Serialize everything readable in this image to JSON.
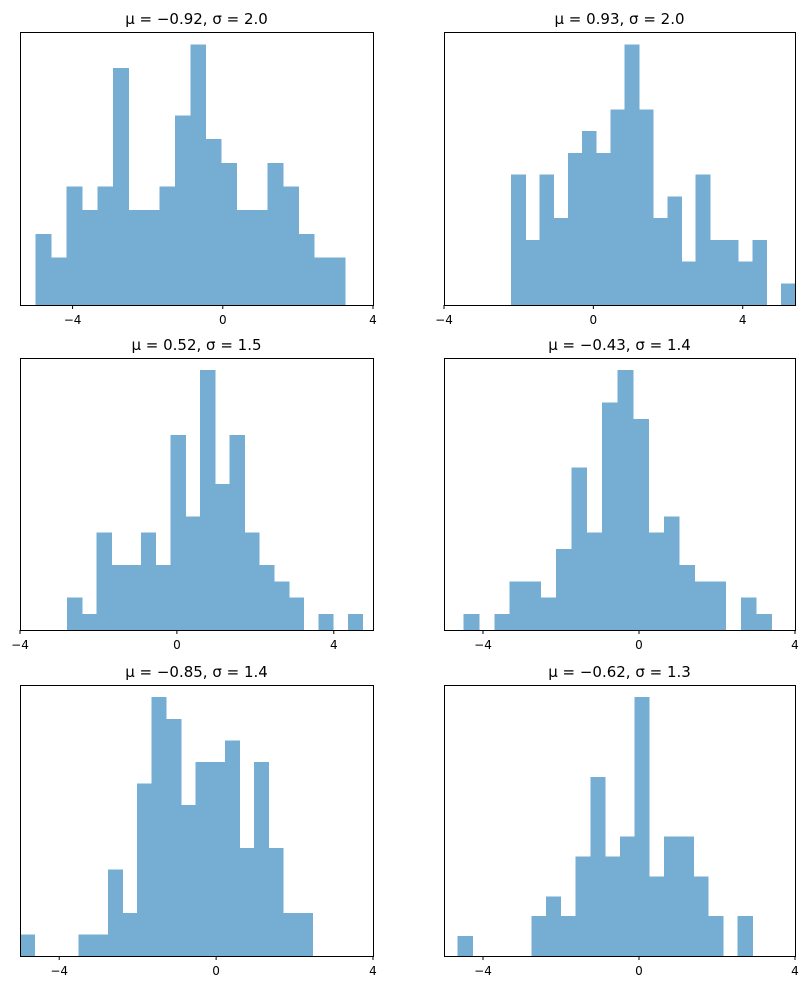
{
  "bar_color": "#76aed3",
  "axes_color": "#000000",
  "chart_data": [
    {
      "type": "bar",
      "subtype": "histogram",
      "title": "μ = −0.92,    σ = 2.0",
      "xlim": [
        -5.4,
        4
      ],
      "x_ticks": [
        -4,
        0,
        4
      ],
      "x_tick_labels": [
        "−4",
        "0",
        "4"
      ],
      "y_ticks_visible": false,
      "bin_start": -4.985,
      "bin_width": 0.412,
      "counts": [
        3,
        2,
        5,
        4,
        5,
        10,
        4,
        4,
        5,
        8,
        11,
        7,
        6,
        4,
        4,
        6,
        5,
        3,
        2,
        2
      ]
    },
    {
      "type": "bar",
      "subtype": "histogram",
      "title": "μ = 0.93,    σ = 2.0",
      "xlim": [
        -4,
        5.4
      ],
      "x_ticks": [
        -4,
        0,
        4
      ],
      "x_tick_labels": [
        "−4",
        "0",
        "4"
      ],
      "y_ticks_visible": false,
      "bin_start": -2.2,
      "bin_width": 0.38,
      "counts": [
        6,
        3,
        6,
        4,
        7,
        8,
        7,
        9,
        12,
        9,
        4,
        5,
        2,
        6,
        3,
        3,
        2,
        3,
        0,
        1
      ]
    },
    {
      "type": "bar",
      "subtype": "histogram",
      "title": "μ = 0.52,    σ = 1.5",
      "xlim": [
        -4,
        5
      ],
      "x_ticks": [
        -4,
        0,
        4
      ],
      "x_tick_labels": [
        "−4",
        "0",
        "4"
      ],
      "y_ticks_visible": false,
      "bin_start": -2.8,
      "bin_width": 0.377,
      "counts": [
        2,
        1,
        6,
        4,
        4,
        6,
        4,
        12,
        7,
        16,
        9,
        12,
        6,
        4,
        3,
        2,
        0,
        1,
        0,
        1
      ]
    },
    {
      "type": "bar",
      "subtype": "histogram",
      "title": "μ = −0.43,    σ = 1.4",
      "xlim": [
        -5,
        4
      ],
      "x_ticks": [
        -4,
        0,
        4
      ],
      "x_tick_labels": [
        "−4",
        "0",
        "4"
      ],
      "y_ticks_visible": false,
      "bin_start": -4.5,
      "bin_width": 0.395,
      "counts": [
        1,
        0,
        1,
        3,
        3,
        2,
        5,
        10,
        6,
        14,
        16,
        13,
        6,
        7,
        4,
        3,
        3,
        0,
        2,
        1
      ]
    },
    {
      "type": "bar",
      "subtype": "histogram",
      "title": "μ = −0.85,    σ = 1.4",
      "xlim": [
        -5,
        4
      ],
      "x_ticks": [
        -4,
        0,
        4
      ],
      "x_tick_labels": [
        "−4",
        "0",
        "4"
      ],
      "y_ticks_visible": false,
      "bin_start": -5.0,
      "bin_width": 0.373,
      "counts": [
        1,
        0,
        0,
        0,
        1,
        1,
        4,
        2,
        8,
        12,
        11,
        7,
        9,
        9,
        10,
        5,
        9,
        5,
        2,
        2
      ]
    },
    {
      "type": "bar",
      "subtype": "histogram",
      "title": "μ = −0.62,    σ = 1.3",
      "xlim": [
        -5,
        4
      ],
      "x_ticks": [
        -4,
        0,
        4
      ],
      "x_tick_labels": [
        "−4",
        "0",
        "4"
      ],
      "y_ticks_visible": false,
      "bin_start": -4.65,
      "bin_width": 0.378,
      "counts": [
        1,
        0,
        0,
        0,
        0,
        2,
        3,
        2,
        5,
        9,
        5,
        6,
        13,
        4,
        6,
        6,
        4,
        2,
        0,
        2
      ]
    }
  ]
}
